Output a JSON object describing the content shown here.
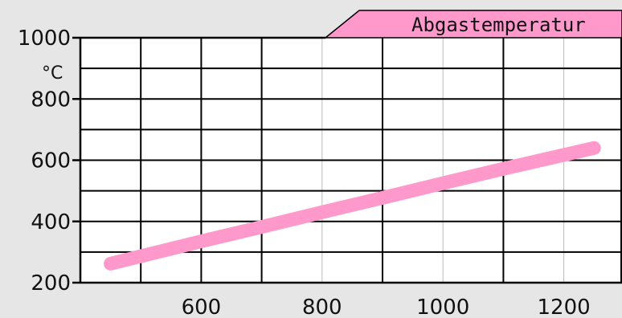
{
  "chart_data": {
    "type": "line",
    "title": "Abgastemperatur",
    "ylabel": "°C",
    "xlabel": "",
    "xlim": [
      400,
      1250
    ],
    "ylim": [
      200,
      1000
    ],
    "x_ticks": [
      600,
      800,
      1000,
      1200
    ],
    "y_ticks": [
      200,
      400,
      600,
      800,
      1000
    ],
    "grid": true,
    "series": [
      {
        "color": "#ff99cc",
        "x": [
          450,
          600,
          700,
          800,
          900,
          1000,
          1100,
          1250
        ],
        "y": [
          262,
          335,
          382,
          430,
          477,
          525,
          572,
          640
        ]
      }
    ]
  },
  "colors": {
    "background": "#e6e6e6",
    "plot_background": "#ffffff",
    "title_tab": "#ff99cc",
    "series_line": "#ff99cc"
  }
}
